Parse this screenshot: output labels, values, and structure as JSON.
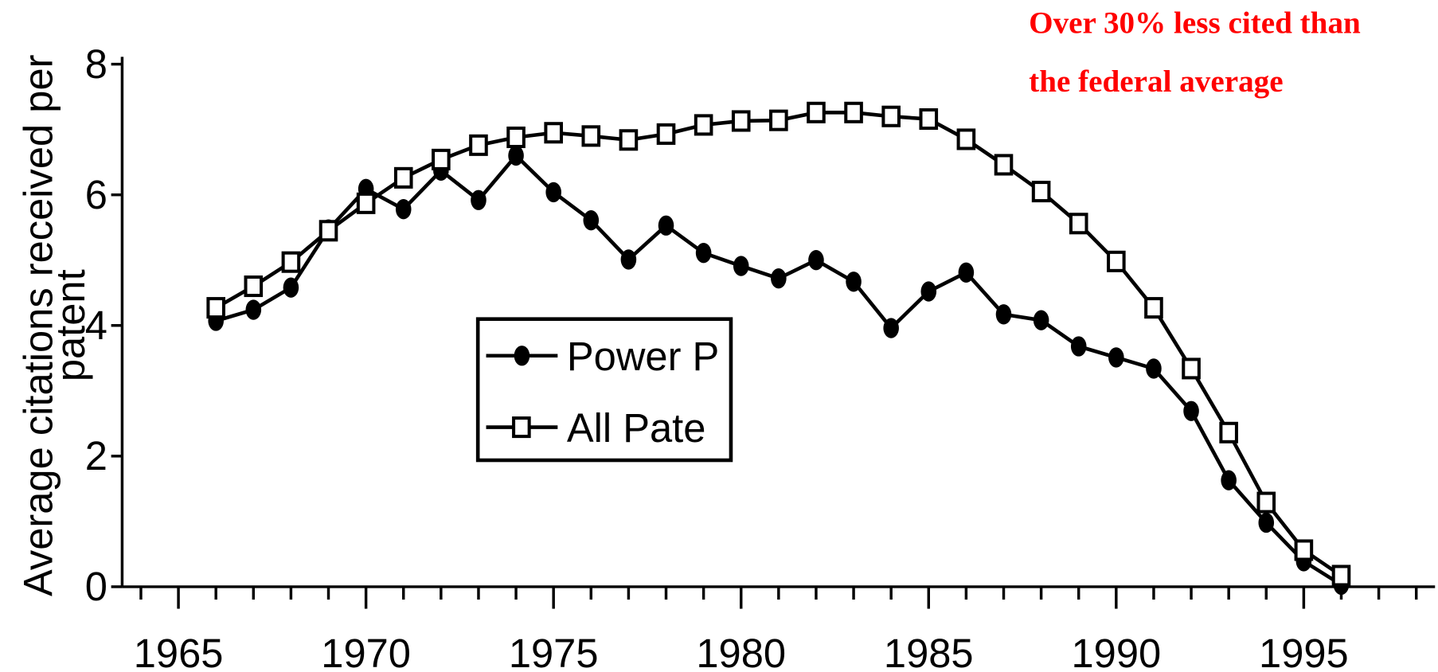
{
  "chart_data": {
    "type": "line",
    "ylabel": [
      "Average citations received per",
      "patent"
    ],
    "annotation": [
      "Over 30% less cited than",
      "the federal average"
    ],
    "x": [
      1966,
      1967,
      1968,
      1969,
      1970,
      1971,
      1972,
      1973,
      1974,
      1975,
      1976,
      1977,
      1978,
      1979,
      1980,
      1981,
      1982,
      1983,
      1984,
      1985,
      1986,
      1987,
      1988,
      1989,
      1990,
      1991,
      1992,
      1993,
      1994,
      1995,
      1996
    ],
    "series": [
      {
        "name": "Power P",
        "color": "#000000",
        "marker": "circle",
        "values": [
          4.07,
          4.24,
          4.58,
          5.47,
          6.09,
          5.78,
          6.37,
          5.92,
          6.6,
          6.04,
          5.61,
          5.01,
          5.53,
          5.11,
          4.91,
          4.72,
          5.0,
          4.67,
          3.96,
          4.52,
          4.81,
          4.17,
          4.08,
          3.68,
          3.51,
          3.34,
          2.69,
          1.63,
          0.98,
          0.39,
          0.03
        ]
      },
      {
        "name": "All Pate",
        "color": "#000000",
        "marker": "square",
        "values": [
          4.27,
          4.6,
          4.97,
          5.45,
          5.87,
          6.26,
          6.54,
          6.76,
          6.88,
          6.95,
          6.9,
          6.84,
          6.93,
          7.07,
          7.13,
          7.14,
          7.26,
          7.26,
          7.2,
          7.16,
          6.85,
          6.46,
          6.05,
          5.56,
          4.98,
          4.27,
          3.34,
          2.36,
          1.29,
          0.56,
          0.17
        ]
      }
    ],
    "xlim": [
      1963.5,
      1998.5
    ],
    "xticks": [
      1965,
      1970,
      1975,
      1980,
      1985,
      1990,
      1995
    ],
    "ylim": [
      0,
      8
    ],
    "yticks": [
      0,
      2,
      4,
      6,
      8
    ],
    "grid": false
  }
}
